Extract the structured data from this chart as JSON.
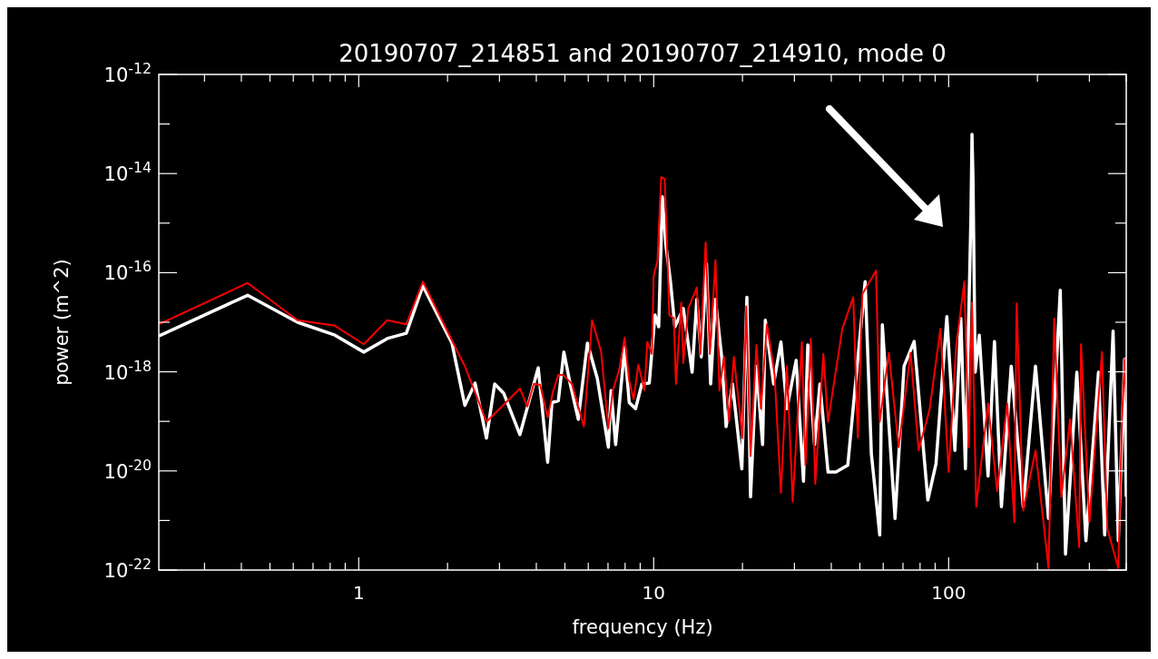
{
  "chart_data": {
    "type": "line",
    "title": "20190707_214851 and 20190707_214910, mode 0",
    "xlabel": "frequency (Hz)",
    "ylabel": "power (m^2)",
    "log": "xy",
    "xlim": [
      0.21,
      400
    ],
    "ylim": [
      1e-22,
      1e-12
    ],
    "xticks": [
      {
        "value": 0.3,
        "label": null
      },
      {
        "value": 0.4,
        "label": null
      },
      {
        "value": 0.5,
        "label": null
      },
      {
        "value": 0.6,
        "label": null
      },
      {
        "value": 0.7,
        "label": null
      },
      {
        "value": 0.8,
        "label": null
      },
      {
        "value": 0.9,
        "label": null
      },
      1,
      {
        "value": 2,
        "label": null
      },
      {
        "value": 3,
        "label": null
      },
      {
        "value": 4,
        "label": null
      },
      {
        "value": 5,
        "label": null
      },
      {
        "value": 6,
        "label": null
      },
      {
        "value": 7,
        "label": null
      },
      {
        "value": 8,
        "label": null
      },
      {
        "value": 9,
        "label": null
      },
      10,
      {
        "value": 20,
        "label": null
      },
      {
        "value": 30,
        "label": null
      },
      {
        "value": 40,
        "label": null
      },
      {
        "value": 50,
        "label": null
      },
      {
        "value": 60,
        "label": null
      },
      {
        "value": 70,
        "label": null
      },
      {
        "value": 80,
        "label": null
      },
      {
        "value": 90,
        "label": null
      },
      100,
      {
        "value": 200,
        "label": null
      },
      {
        "value": 300,
        "label": null
      },
      {
        "value": 400,
        "label": null
      }
    ],
    "yticks": [
      {
        "value": 1e-22,
        "label": "10$^{-22}$"
      },
      {
        "value": 1e-21,
        "label": null
      },
      {
        "value": 1e-20,
        "label": "10$^{-20}$"
      },
      {
        "value": 1e-19,
        "label": null
      },
      {
        "value": 1e-18,
        "label": "10$^{-18}$"
      },
      {
        "value": 1e-17,
        "label": null
      },
      {
        "value": 1e-16,
        "label": "10$^{-16}$"
      },
      {
        "value": 1e-15,
        "label": null
      },
      {
        "value": 1e-14,
        "label": "10$^{-14}$"
      },
      {
        "value": 1e-13,
        "label": null
      },
      {
        "value": 1e-12,
        "label": "10$^{-12}$"
      }
    ],
    "line_style": "solid",
    "series": [
      {
        "color": "#ffffff",
        "x": [
          0.21,
          0.42,
          0.62,
          0.83,
          1.04,
          1.25,
          1.45,
          1.65,
          2.07,
          2.29,
          2.48,
          2.71,
          2.89,
          3.1,
          3.52,
          4.06,
          4.37,
          4.52,
          4.75,
          4.96,
          5.21,
          5.55,
          5.96,
          6.44,
          7.02,
          7.17,
          7.43,
          7.97,
          8.26,
          8.68,
          9.12,
          9.66,
          10.1,
          10.4,
          10.7,
          11.0,
          11.4,
          11.8,
          12.6,
          13.5,
          14.0,
          14.5,
          15.1,
          15.6,
          16.2,
          17.0,
          17.6,
          18.5,
          19.9,
          20.7,
          21.3,
          22.3,
          23.4,
          23.9,
          25.5,
          27.0,
          28.3,
          30.4,
          32.2,
          33.3,
          35.1,
          36.6,
          39.0,
          41.5,
          45.5,
          52.1,
          54.7,
          58.4,
          59.6,
          65.8,
          70.6,
          76.4,
          85.0,
          90.6,
          98.6,
          105,
          110,
          114,
          119,
          120,
          121,
          123,
          127,
          136,
          143,
          151,
          163,
          179,
          197,
          218,
          239,
          249,
          272,
          292,
          322,
          338,
          361,
          376,
          395,
          400
        ],
        "values": [
          5.3e-18,
          3.5e-17,
          1e-17,
          5.5e-18,
          2.5e-18,
          4.7e-18,
          6e-18,
          5.4e-17,
          3.8e-18,
          2.1e-19,
          5.9e-19,
          4.6e-20,
          5.7e-19,
          3.7e-19,
          5.4e-20,
          1.2e-18,
          1.5e-20,
          2.4e-19,
          2.6e-19,
          2.5e-18,
          5.7e-19,
          1.1e-19,
          3.8e-18,
          7.3e-19,
          3e-20,
          4.2e-19,
          3.4e-20,
          3.1e-18,
          2.4e-19,
          1.8e-19,
          5.7e-19,
          5.9e-19,
          1.4e-17,
          8.1e-18,
          3.4e-15,
          3.6e-16,
          6.6e-17,
          8.1e-18,
          1.9e-17,
          9.8e-19,
          2.9e-17,
          2e-18,
          1.5e-16,
          5.7e-19,
          2.9e-17,
          2e-18,
          7.8e-20,
          5.7e-19,
          1.1e-20,
          3.2e-17,
          3e-21,
          1.3e-18,
          3.4e-20,
          1.1e-17,
          5.7e-19,
          4e-18,
          1.8e-19,
          1.7e-18,
          6.2e-21,
          3.5e-18,
          3.4e-20,
          5.7e-19,
          9.5e-21,
          9.5e-21,
          1.3e-20,
          6.6e-17,
          2.2e-20,
          5.1e-22,
          8.9e-18,
          1.1e-21,
          1.3e-18,
          4.1e-18,
          2.6e-21,
          1.4e-20,
          1.3e-17,
          2.6e-20,
          1.2e-17,
          1.1e-20,
          1.4e-15,
          6.2e-14,
          6.9e-15,
          9.8e-19,
          5.5e-18,
          7.9e-21,
          4.1e-18,
          1.9e-21,
          1.3e-18,
          1.9e-21,
          1.3e-18,
          1.1e-21,
          4.4e-17,
          2.1e-22,
          9.8e-19,
          3.9e-22,
          9.8e-19,
          5.1e-22,
          6.6e-18,
          3.9e-22,
          1.8e-18,
          3e-21
        ]
      },
      {
        "color": "#ff0000",
        "x": [
          0.21,
          0.42,
          0.62,
          0.83,
          1.04,
          1.25,
          1.45,
          1.65,
          2.07,
          2.29,
          2.71,
          3.52,
          3.73,
          3.92,
          4.12,
          4.37,
          4.55,
          4.75,
          4.93,
          5.28,
          5.8,
          6.18,
          6.63,
          7.02,
          7.27,
          7.64,
          7.97,
          8.26,
          8.55,
          8.87,
          9.31,
          9.51,
          9.86,
          10.0,
          10.3,
          10.6,
          10.9,
          11.3,
          11.7,
          11.9,
          12.4,
          12.6,
          13.1,
          14.0,
          14.4,
          15.0,
          15.5,
          16.2,
          16.7,
          17.3,
          18.0,
          18.7,
          20.0,
          20.6,
          21.3,
          22.3,
          23.1,
          24.2,
          25.7,
          27.0,
          28.3,
          29.6,
          31.8,
          32.7,
          34.1,
          35.3,
          37.6,
          39.0,
          43.6,
          47.5,
          49.2,
          51.0,
          56.7,
          58.4,
          62.7,
          67.7,
          74.3,
          79.1,
          86.1,
          93.8,
          100,
          106,
          113,
          117,
          120,
          124,
          136,
          146,
          158,
          167,
          170,
          179,
          197,
          218,
          228,
          241,
          258,
          277,
          281,
          300,
          331,
          345,
          376,
          387,
          395,
          400
        ],
        "values": [
          9.1e-18,
          6.2e-17,
          1.1e-17,
          8.5e-18,
          3.6e-18,
          1.1e-17,
          9.1e-18,
          6.6e-17,
          4.3e-18,
          1.3e-18,
          9.8e-20,
          4.6e-19,
          2e-19,
          5.7e-19,
          5.5e-19,
          1.2e-19,
          3.9e-19,
          8.7e-19,
          8.7e-19,
          5.7e-19,
          7.8e-20,
          1.1e-17,
          2.6e-18,
          7.2e-20,
          4.2e-19,
          1.1e-18,
          4.9e-18,
          6.5e-19,
          2.8e-19,
          1.4e-18,
          4.2e-19,
          4e-18,
          2.3e-18,
          8.9e-17,
          1.7e-16,
          8.5e-15,
          7.8e-15,
          1.4e-17,
          1.2e-17,
          5.7e-19,
          2.5e-17,
          1.5e-18,
          1.9e-17,
          5e-17,
          2.3e-18,
          4.1e-16,
          2.3e-18,
          1.8e-16,
          4.2e-19,
          2e-18,
          1e-19,
          2e-18,
          4.6e-20,
          2.1e-17,
          2e-20,
          3.5e-18,
          1.8e-19,
          9.1e-18,
          8.7e-19,
          3.6e-21,
          1.3e-18,
          2.4e-21,
          4e-18,
          1.3e-20,
          4.7e-18,
          5.5e-21,
          2.3e-18,
          9.8e-20,
          7.4e-18,
          3.2e-17,
          4.7e-20,
          3.7e-17,
          1.1e-16,
          9.8e-20,
          2.4e-18,
          3e-20,
          2.4e-18,
          2.6e-20,
          1.7e-19,
          7.4e-18,
          9.5e-21,
          3.2e-18,
          6.6e-17,
          3e-20,
          2.5e-17,
          1.9e-21,
          2.3e-19,
          3.9e-21,
          2.3e-19,
          9.3e-22,
          2.4e-17,
          1.6e-21,
          2.6e-20,
          1.1e-22,
          1.2e-17,
          3e-21,
          1.1e-19,
          2.9e-22,
          3.6e-18,
          9.3e-22,
          2.5e-18,
          6.9e-22,
          1.1e-22,
          1.1e-19,
          1.8e-18,
          2.3e-19
        ]
      }
    ]
  }
}
